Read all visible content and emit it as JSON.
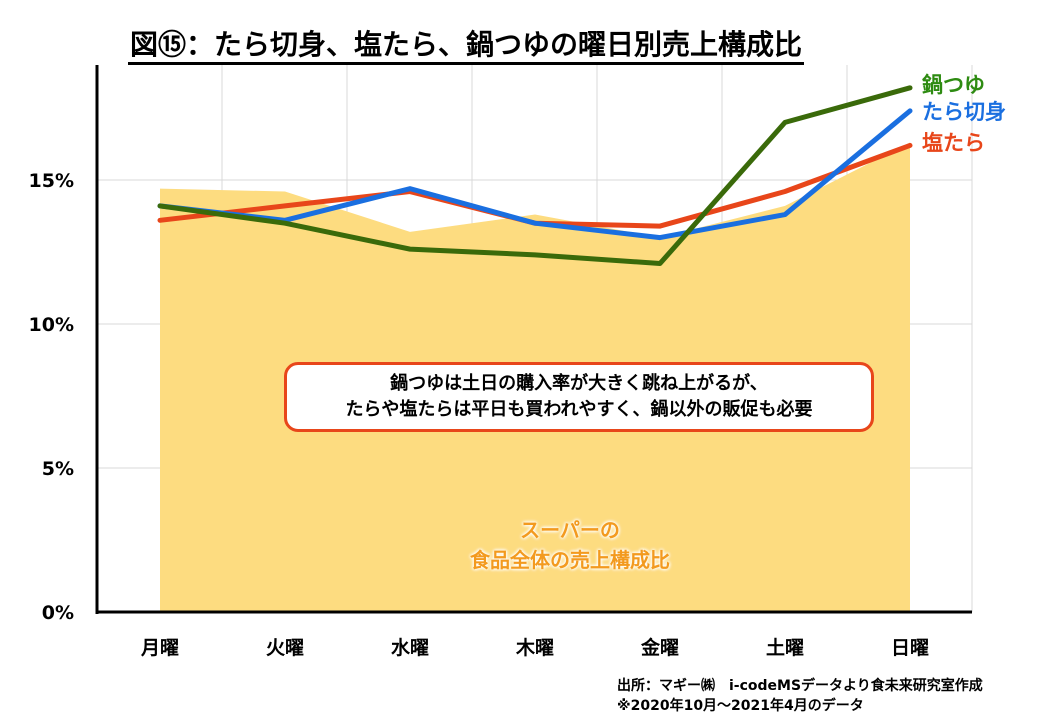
{
  "title": "図⑮：たら切身、塩たら、鍋つゆの曜日別売上構成比",
  "colors": {
    "nabetsuyu": "#3a6a0a",
    "nabetsuyu_label": "#2e8b12",
    "tara_kirimi": "#1a6fe0",
    "shio_tara": "#e8461a",
    "area_fill": "#fddc80",
    "area_label": "#f39a1e"
  },
  "callout": {
    "line1": "鍋つゆは土日の購入率が大きく跳ね上がるが、",
    "line2": "たらや塩たらは平日も買われやすく、鍋以外の販促も必要"
  },
  "area_label": {
    "line1": "スーパーの",
    "line2": "食品全体の売上構成比"
  },
  "source": {
    "line1": "出所：マギー㈱　i-codeMSデータより食未来研究室作成",
    "line2": "※2020年10月～2021年4月のデータ"
  },
  "chart_data": {
    "type": "line",
    "title": "図⑮：たら切身、塩たら、鍋つゆの曜日別売上構成比",
    "xlabel": "",
    "ylabel": "",
    "categories": [
      "月曜",
      "火曜",
      "水曜",
      "木曜",
      "金曜",
      "土曜",
      "日曜"
    ],
    "ylim": [
      0,
      19
    ],
    "yticks": [
      0,
      5,
      10,
      15
    ],
    "ytick_labels": [
      "0%",
      "5%",
      "10%",
      "15%"
    ],
    "grid": true,
    "legend_placement": "right (end of lines)",
    "area": {
      "name": "スーパーの食品全体の売上構成比",
      "values": [
        14.7,
        14.6,
        13.2,
        13.8,
        13.0,
        14.1,
        16.3
      ]
    },
    "series": [
      {
        "name": "鍋つゆ",
        "color_key": "nabetsuyu",
        "values": [
          14.1,
          13.5,
          12.6,
          12.4,
          12.1,
          17.0,
          18.2
        ]
      },
      {
        "name": "たら切身",
        "color_key": "tara_kirimi",
        "values": [
          14.1,
          13.6,
          14.7,
          13.5,
          13.0,
          13.8,
          17.4
        ]
      },
      {
        "name": "塩たら",
        "color_key": "shio_tara",
        "values": [
          13.6,
          14.1,
          14.6,
          13.5,
          13.4,
          14.6,
          16.2
        ]
      }
    ]
  }
}
